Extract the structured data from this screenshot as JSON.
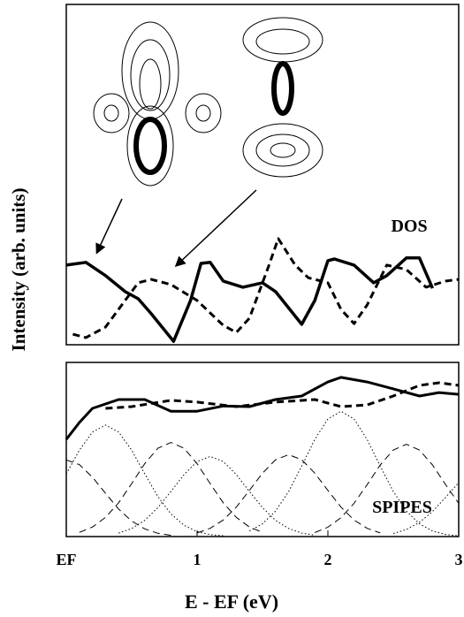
{
  "chart_data": [
    {
      "type": "line",
      "annotation": "DOS",
      "ylabel": "Intensity (arb. units)",
      "xlim": [
        0,
        3
      ],
      "ylim": [
        0,
        100
      ],
      "series": [
        {
          "color": "#000000",
          "style": "solid",
          "width": 3.5,
          "x": [
            0,
            0.15,
            0.3,
            0.45,
            0.55,
            0.65,
            0.82,
            0.95,
            1.03,
            1.1,
            1.2,
            1.35,
            1.5,
            1.6,
            1.8,
            1.9,
            2.0,
            2.05,
            2.2,
            2.35,
            2.45,
            2.6,
            2.7,
            2.8
          ],
          "values": [
            23.4,
            24.2,
            20.3,
            15.6,
            13.5,
            9.1,
            1.0,
            13,
            23.9,
            24.2,
            18.7,
            16.9,
            18.2,
            15.6,
            6,
            13,
            24.7,
            25.2,
            23.4,
            18.2,
            20.3,
            25.5,
            25.5,
            16.6
          ]
        },
        {
          "color": "#000000",
          "style": "dashed",
          "width": 3,
          "x": [
            0.05,
            0.15,
            0.3,
            0.45,
            0.55,
            0.65,
            0.8,
            1.0,
            1.2,
            1.3,
            1.4,
            1.55,
            1.62,
            1.75,
            1.85,
            2.0,
            2.1,
            2.2,
            2.3,
            2.45,
            2.6,
            2.75,
            2.9,
            3.0
          ],
          "values": [
            3.1,
            2.1,
            5.2,
            13,
            18.2,
            19.2,
            17.7,
            13,
            5.7,
            3.6,
            7.8,
            23.4,
            31.2,
            23.4,
            19.7,
            18.2,
            10.4,
            6.2,
            11.7,
            23.4,
            22.1,
            16.9,
            18.7,
            19.2
          ]
        }
      ]
    },
    {
      "type": "line",
      "annotation": "SPIPES",
      "xlabel": "E - EF (eV)",
      "xlim": [
        0,
        3
      ],
      "ylim": [
        0,
        100
      ],
      "xticks": [
        {
          "value": 0,
          "label": "EF"
        },
        1,
        2,
        3
      ],
      "series": [
        {
          "color": "#000000",
          "style": "solid",
          "width": 3,
          "x": [
            0,
            0.1,
            0.2,
            0.4,
            0.6,
            0.8,
            1.0,
            1.2,
            1.4,
            1.6,
            1.8,
            2.0,
            2.1,
            2.3,
            2.5,
            2.7,
            2.85,
            3.0
          ],
          "values": [
            55.8,
            65.5,
            73.6,
            78.7,
            78.7,
            72,
            72,
            75,
            74.6,
            78.7,
            80.7,
            88.8,
            91.4,
            88.8,
            84.8,
            80.7,
            82.7,
            81.7
          ]
        },
        {
          "color": "#000000",
          "style": "dashed",
          "width": 3,
          "x": [
            0.3,
            0.5,
            0.8,
            1.0,
            1.3,
            1.6,
            1.9,
            2.1,
            2.3,
            2.5,
            2.7,
            2.85,
            3.0
          ],
          "values": [
            73.6,
            74.6,
            78.2,
            77.2,
            74.6,
            77.2,
            78.7,
            74.6,
            75.6,
            80.7,
            86.8,
            88.3,
            86.8
          ]
        },
        {
          "color": "#000000",
          "style": "dotted",
          "width": 1,
          "x": [
            0,
            0.1,
            0.2,
            0.3,
            0.4,
            0.5,
            0.6,
            0.7,
            0.8,
            0.9,
            1.0,
            1.1,
            1.2
          ],
          "values": [
            36,
            49.6,
            60,
            64,
            60,
            49.6,
            36,
            23,
            13,
            6.5,
            2.8,
            1.1,
            0.4
          ]
        },
        {
          "color": "#000000",
          "style": "dotted",
          "width": 1,
          "x": [
            0.4,
            0.5,
            0.6,
            0.7,
            0.8,
            0.9,
            1.0,
            1.1,
            1.2,
            1.3,
            1.4,
            1.5,
            1.6,
            1.7,
            1.8,
            1.9
          ],
          "values": [
            2,
            4.6,
            9.3,
            16.6,
            25.9,
            35.6,
            43.1,
            46,
            43.1,
            35.6,
            25.9,
            16.6,
            9.3,
            4.6,
            2,
            0.8
          ]
        },
        {
          "color": "#000000",
          "style": "dotted",
          "width": 1,
          "x": [
            1.4,
            1.5,
            1.6,
            1.7,
            1.8,
            1.9,
            2.0,
            2.1,
            2.2,
            2.3,
            2.4,
            2.5,
            2.6,
            2.7,
            2.8,
            2.9,
            3.0
          ],
          "values": [
            3.2,
            7.3,
            14.6,
            25.9,
            40.5,
            55.8,
            67.5,
            72,
            67.5,
            55.8,
            40.5,
            25.9,
            14.6,
            7.3,
            3.2,
            1.2,
            0.4
          ]
        },
        {
          "color": "#000000",
          "style": "dotted",
          "width": 1,
          "x": [
            2.5,
            2.6,
            2.7,
            2.8,
            2.9,
            3.0
          ],
          "values": [
            1.8,
            4,
            8.1,
            14.4,
            22.5,
            31
          ]
        },
        {
          "color": "#000000",
          "style": "dashed",
          "width": 1,
          "x": [
            0,
            0.1,
            0.2,
            0.3,
            0.4,
            0.5,
            0.6,
            0.7,
            0.8
          ],
          "values": [
            44,
            41.3,
            34.1,
            24.8,
            15.8,
            8.9,
            4.4,
            1.9,
            0.7
          ]
        },
        {
          "color": "#000000",
          "style": "dashed",
          "width": 1,
          "x": [
            0.1,
            0.2,
            0.3,
            0.4,
            0.5,
            0.6,
            0.7,
            0.8,
            0.9,
            1.0,
            1.1,
            1.2,
            1.3,
            1.4,
            1.5
          ],
          "values": [
            2.4,
            5.5,
            11,
            19.4,
            30.4,
            41.9,
            50.7,
            54,
            50.7,
            41.9,
            30.4,
            19.4,
            11,
            5.5,
            2.4
          ]
        },
        {
          "color": "#000000",
          "style": "dashed",
          "width": 1,
          "x": [
            1.0,
            1.1,
            1.2,
            1.3,
            1.4,
            1.5,
            1.6,
            1.7,
            1.8,
            1.9,
            2.0,
            2.1,
            2.2,
            2.3,
            2.4
          ],
          "values": [
            2.1,
            4.7,
            9.5,
            16.9,
            26.5,
            36.4,
            44.1,
            47,
            44.1,
            36.4,
            26.5,
            16.9,
            9.5,
            4.7,
            2.1
          ]
        },
        {
          "color": "#000000",
          "style": "dashed",
          "width": 1,
          "x": [
            1.9,
            2.0,
            2.1,
            2.2,
            2.3,
            2.4,
            2.5,
            2.6,
            2.7,
            2.8,
            2.9,
            3.0
          ],
          "values": [
            2.3,
            5.4,
            10.8,
            19.1,
            29.8,
            41.1,
            49.7,
            53,
            49.7,
            41.1,
            29.8,
            19.1
          ]
        }
      ]
    }
  ]
}
